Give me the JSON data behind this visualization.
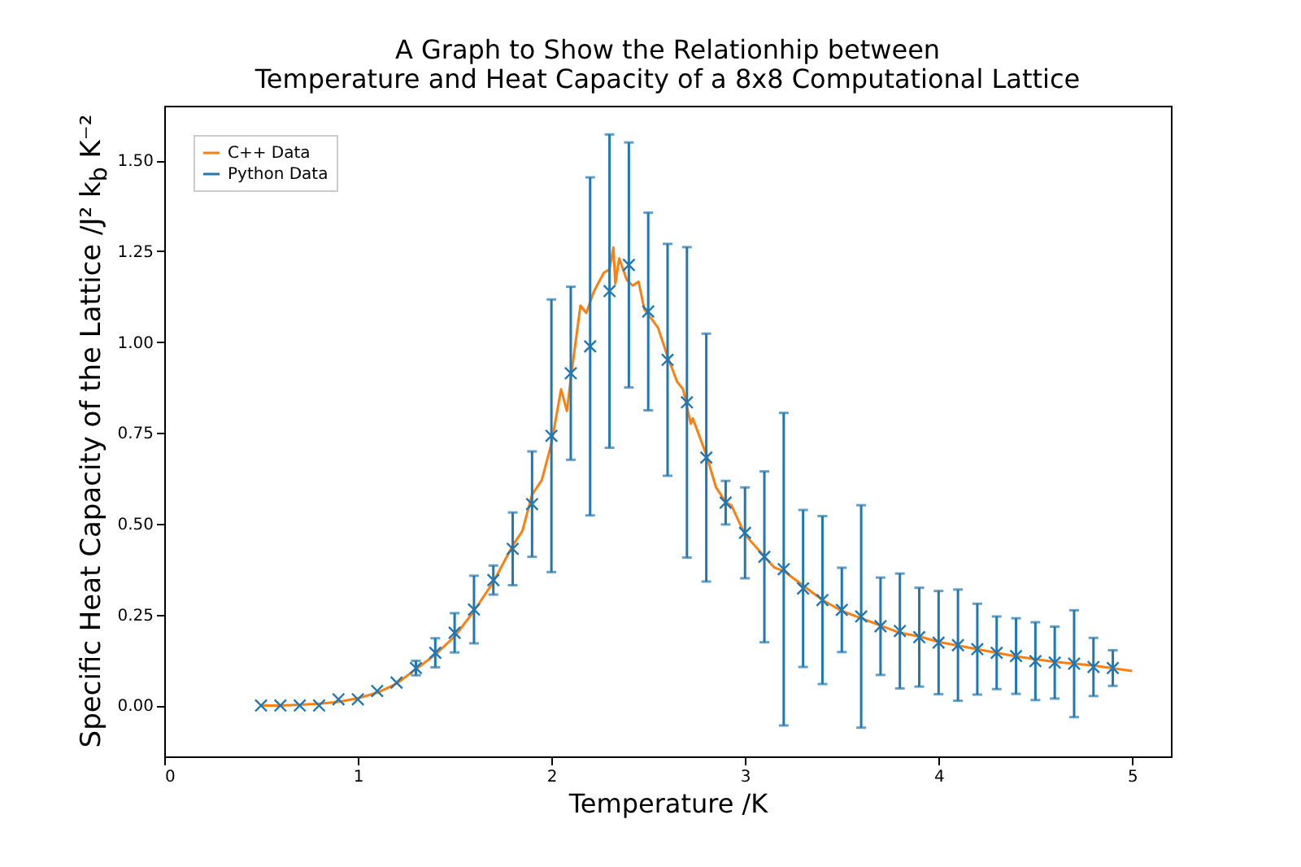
{
  "chart_data": {
    "type": "line",
    "title": "A Graph to Show the Relationhip between\nTemperature and Heat Capacity of a 8x8 Computational Lattice",
    "xlabel": "Temperature /K",
    "ylabel": "Specific Heat Capacity of the Lattice /J² k$_{b}$ K⁻²",
    "xlim": [
      0,
      5.2
    ],
    "ylim": [
      -0.14,
      1.65
    ],
    "xticks": [
      0,
      1,
      2,
      3,
      4,
      5
    ],
    "yticks": [
      {
        "value": 0,
        "label": "0.00"
      },
      {
        "value": 0.25,
        "label": "0.25"
      },
      {
        "value": 0.5,
        "label": "0.50"
      },
      {
        "value": 0.75,
        "label": "0.75"
      },
      {
        "value": 1,
        "label": "1.00"
      },
      {
        "value": 1.25,
        "label": "1.25"
      },
      {
        "value": 1.5,
        "label": "1.50"
      }
    ],
    "grid": false,
    "legend": "top left",
    "series": [
      {
        "name": "C++ Data",
        "color": "#ff7f0e",
        "x": [
          0.5,
          0.6,
          0.7,
          0.8,
          0.9,
          1.0,
          1.1,
          1.2,
          1.3,
          1.4,
          1.5,
          1.6,
          1.7,
          1.8,
          1.85,
          1.9,
          1.95,
          2.0,
          2.05,
          2.08,
          2.1,
          2.15,
          2.18,
          2.22,
          2.27,
          2.3,
          2.32,
          2.33,
          2.35,
          2.39,
          2.42,
          2.45,
          2.48,
          2.55,
          2.6,
          2.65,
          2.68,
          2.72,
          2.73,
          2.8,
          2.85,
          2.9,
          2.93,
          3.0,
          3.1,
          3.15,
          3.2,
          3.25,
          3.3,
          3.4,
          3.5,
          3.6,
          3.7,
          3.8,
          3.9,
          4.0,
          4.2,
          4.4,
          4.6,
          4.8,
          5.0
        ],
        "values": [
          0.0,
          0.0,
          0.002,
          0.005,
          0.01,
          0.02,
          0.035,
          0.06,
          0.1,
          0.14,
          0.19,
          0.26,
          0.34,
          0.44,
          0.48,
          0.58,
          0.62,
          0.72,
          0.87,
          0.81,
          0.9,
          1.1,
          1.08,
          1.14,
          1.19,
          1.2,
          1.26,
          1.16,
          1.23,
          1.17,
          1.155,
          1.166,
          1.09,
          1.04,
          0.96,
          0.89,
          0.87,
          0.775,
          0.79,
          0.69,
          0.6,
          0.56,
          0.55,
          0.47,
          0.41,
          0.38,
          0.37,
          0.35,
          0.33,
          0.29,
          0.26,
          0.24,
          0.22,
          0.2,
          0.19,
          0.175,
          0.155,
          0.135,
          0.12,
          0.11,
          0.095
        ]
      },
      {
        "name": "Python Data",
        "type": "scatter",
        "color": "#1f77b4",
        "marker": "cross",
        "x": [
          0.5,
          0.6,
          0.7,
          0.8,
          0.9,
          1.0,
          1.1,
          1.2,
          1.3,
          1.4,
          1.5,
          1.6,
          1.7,
          1.8,
          1.9,
          2.0,
          2.1,
          2.2,
          2.3,
          2.4,
          2.5,
          2.6,
          2.7,
          2.8,
          2.9,
          3.0,
          3.1,
          3.2,
          3.3,
          3.4,
          3.5,
          3.6,
          3.7,
          3.8,
          3.9,
          4.0,
          4.1,
          4.2,
          4.3,
          4.4,
          4.5,
          4.6,
          4.7,
          4.8,
          4.9
        ],
        "values": [
          0.0,
          0.0,
          0.0,
          0.0,
          0.017,
          0.017,
          0.04,
          0.063,
          0.103,
          0.145,
          0.2,
          0.264,
          0.345,
          0.431,
          0.554,
          0.742,
          0.914,
          0.988,
          1.14,
          1.212,
          1.084,
          0.951,
          0.834,
          0.682,
          0.558,
          0.475,
          0.409,
          0.375,
          0.322,
          0.29,
          0.263,
          0.245,
          0.218,
          0.205,
          0.188,
          0.173,
          0.166,
          0.155,
          0.145,
          0.136,
          0.122,
          0.118,
          0.115,
          0.106,
          0.103
        ],
        "errors": [
          null,
          null,
          null,
          null,
          null,
          null,
          null,
          null,
          0.02,
          0.04,
          0.054,
          0.093,
          0.04,
          0.1,
          0.145,
          0.375,
          0.238,
          0.465,
          0.431,
          0.337,
          0.272,
          0.319,
          0.427,
          0.341,
          0.06,
          0.125,
          0.235,
          0.43,
          0.216,
          0.231,
          0.116,
          0.306,
          0.134,
          0.158,
          0.136,
          0.142,
          0.153,
          0.125,
          0.1,
          0.104,
          0.107,
          0.099,
          0.147,
          0.08,
          0.049
        ]
      }
    ]
  }
}
